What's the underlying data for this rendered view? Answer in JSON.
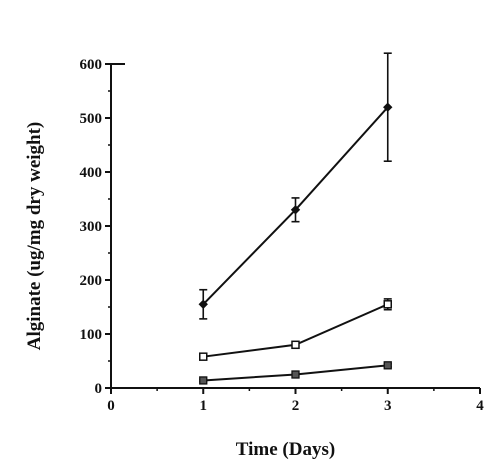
{
  "chart_data": {
    "type": "line",
    "xlabel": "Time (Days)",
    "ylabel": "Alginate (ug/mg dry weight)",
    "xlim": [
      0,
      4
    ],
    "ylim": [
      0,
      600
    ],
    "x_ticks": [
      0,
      1,
      2,
      3,
      4
    ],
    "y_ticks": [
      0,
      100,
      200,
      300,
      400,
      500,
      600
    ],
    "grid": false,
    "legend": "none",
    "series": [
      {
        "marker": "filled-diamond",
        "x": [
          1,
          2,
          3
        ],
        "values": [
          155,
          330,
          520
        ],
        "error": [
          27,
          22,
          100
        ]
      },
      {
        "marker": "open-square",
        "x": [
          1,
          2,
          3
        ],
        "values": [
          58,
          80,
          155
        ],
        "error": [
          3,
          3,
          10
        ]
      },
      {
        "marker": "filled-square",
        "x": [
          1,
          2,
          3
        ],
        "values": [
          14,
          25,
          42
        ],
        "error": [
          2,
          2,
          3
        ]
      }
    ],
    "colors": {
      "line": "#111111",
      "axis": "#111111",
      "background": "#ffffff"
    }
  }
}
